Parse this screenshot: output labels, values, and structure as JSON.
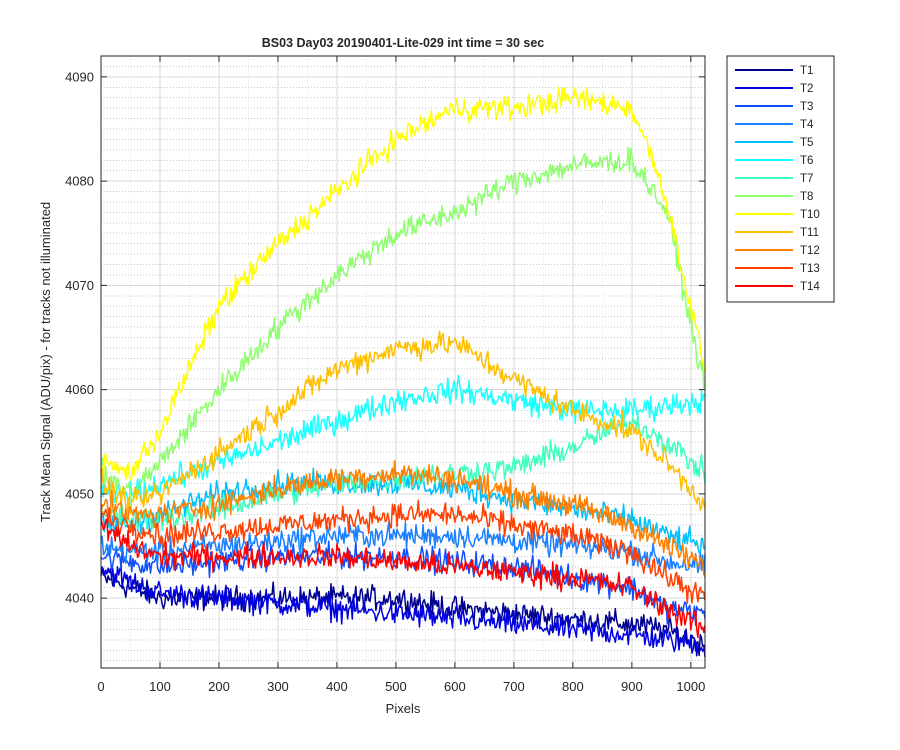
{
  "chart_data": {
    "type": "line",
    "title": "BS03 Day03 20190401-Lite-029 int time = 30 sec",
    "xlabel": "Pixels",
    "ylabel": "Track Mean Signal (ADU/pix) - for tracks not illuminated",
    "xlim": [
      0,
      1024
    ],
    "ylim": [
      4033.3,
      4092
    ],
    "xticks": [
      0,
      100,
      200,
      300,
      400,
      500,
      600,
      700,
      800,
      900,
      1000
    ],
    "yticks": [
      4040,
      4050,
      4060,
      4070,
      4080,
      4090
    ],
    "grid": "major and minor (dotted on y)",
    "legend_position": "outside-top-right",
    "series": [
      {
        "name": "T1",
        "color": "#00008f",
        "x": [
          0,
          50,
          100,
          200,
          300,
          400,
          500,
          600,
          700,
          800,
          900,
          960,
          1024
        ],
        "y": [
          4042,
          4041,
          4040,
          4040,
          4040,
          4040,
          4040,
          4039,
          4038.5,
          4038,
          4037.5,
          4037,
          4035.5
        ]
      },
      {
        "name": "T2",
        "color": "#0000e0",
        "x": [
          0,
          50,
          100,
          200,
          300,
          400,
          500,
          600,
          700,
          800,
          900,
          960,
          1024
        ],
        "y": [
          4043,
          4041.5,
          4040.5,
          4040,
          4039.5,
          4039,
          4038.5,
          4038,
          4037.5,
          4037,
          4036.5,
          4036,
          4035.5
        ]
      },
      {
        "name": "T3",
        "color": "#0f4fff",
        "x": [
          0,
          50,
          100,
          200,
          300,
          400,
          500,
          600,
          700,
          800,
          900,
          960,
          1024
        ],
        "y": [
          4044,
          4043.5,
          4043,
          4043.5,
          4044,
          4044,
          4044,
          4043.5,
          4043,
          4042,
          4041,
          4039,
          4038.5
        ]
      },
      {
        "name": "T4",
        "color": "#1a80ff",
        "x": [
          0,
          50,
          100,
          200,
          300,
          400,
          500,
          600,
          700,
          800,
          900,
          960,
          1024
        ],
        "y": [
          4045,
          4044.5,
          4044.5,
          4045,
          4045.5,
          4046,
          4046,
          4046,
          4045.5,
          4045,
          4044.5,
          4043.5,
          4043
        ]
      },
      {
        "name": "T5",
        "color": "#00bfff",
        "x": [
          0,
          50,
          100,
          200,
          300,
          400,
          500,
          600,
          700,
          800,
          900,
          960,
          1024
        ],
        "y": [
          4047,
          4047,
          4048,
          4050,
          4051,
          4051,
          4051,
          4050.5,
          4049.5,
          4048.5,
          4047.5,
          4046,
          4045
        ]
      },
      {
        "name": "T6",
        "color": "#1affff",
        "x": [
          0,
          50,
          100,
          200,
          300,
          400,
          500,
          600,
          700,
          800,
          900,
          960,
          1024
        ],
        "y": [
          4050,
          4050,
          4051,
          4053,
          4055,
          4057,
          4059,
          4060,
          4059,
          4058,
          4058,
          4058.5,
          4059
        ]
      },
      {
        "name": "T7",
        "color": "#40ffbf",
        "x": [
          0,
          50,
          100,
          200,
          300,
          400,
          500,
          600,
          700,
          800,
          900,
          960,
          1024
        ],
        "y": [
          4048,
          4047.5,
          4047.5,
          4048.5,
          4050,
          4051,
          4051.5,
          4052,
          4052.5,
          4054.5,
          4057,
          4055,
          4052
        ]
      },
      {
        "name": "T8",
        "color": "#8fff70",
        "x": [
          0,
          50,
          100,
          200,
          300,
          400,
          500,
          600,
          700,
          800,
          900,
          960,
          1024
        ],
        "y": [
          4052,
          4050,
          4053,
          4060,
          4066,
          4071,
          4075,
          4077,
          4080,
          4081.5,
          4082,
          4077,
          4060
        ]
      },
      {
        "name": "T10",
        "color": "#ffff00",
        "x": [
          0,
          50,
          100,
          150,
          200,
          300,
          400,
          500,
          600,
          700,
          800,
          900,
          950,
          980,
          1024
        ],
        "y": [
          4053,
          4052,
          4056,
          4062,
          4068,
          4074,
          4079,
          4084,
          4087,
          4087,
          4088,
          4087,
          4080,
          4073,
          4062
        ]
      },
      {
        "name": "T11",
        "color": "#ffbf00",
        "x": [
          0,
          50,
          100,
          200,
          300,
          400,
          500,
          600,
          700,
          800,
          900,
          960,
          1024
        ],
        "y": [
          4051,
          4049,
          4050,
          4054,
          4058,
          4062,
          4064,
          4064.5,
          4061,
          4058,
          4056,
          4053,
          4049
        ]
      },
      {
        "name": "T12",
        "color": "#ff8000",
        "x": [
          0,
          50,
          100,
          200,
          300,
          400,
          500,
          600,
          700,
          800,
          900,
          960,
          1024
        ],
        "y": [
          4049,
          4048,
          4048,
          4049,
          4050.5,
          4051.5,
          4052,
          4051.5,
          4050,
          4049,
          4047,
          4045,
          4043
        ]
      },
      {
        "name": "T13",
        "color": "#ff4000",
        "x": [
          0,
          50,
          100,
          200,
          300,
          400,
          500,
          600,
          700,
          800,
          900,
          960,
          1024
        ],
        "y": [
          4048,
          4047,
          4046,
          4046.5,
          4047,
          4047.5,
          4048,
          4048,
          4047,
          4046,
          4044.5,
          4042,
          4040
        ]
      },
      {
        "name": "T14",
        "color": "#ff0000",
        "x": [
          0,
          50,
          100,
          200,
          300,
          400,
          500,
          600,
          700,
          800,
          900,
          960,
          1024
        ],
        "y": [
          4047,
          4045,
          4044,
          4044,
          4044,
          4044,
          4043.5,
          4043,
          4042.5,
          4042,
          4041,
          4039,
          4037
        ]
      }
    ]
  }
}
